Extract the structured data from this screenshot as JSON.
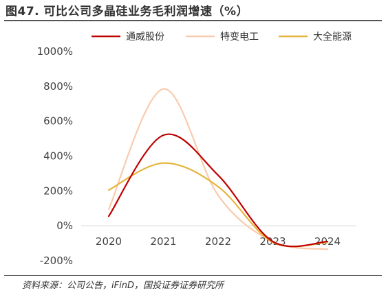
{
  "figure": {
    "title": "图47. 可比公司多晶硅业务毛利润增速（%）",
    "source": "资料来源：公司公告，iFinD，国投证券证券研究所"
  },
  "chart_data": {
    "type": "line",
    "title": "",
    "xlabel": "",
    "ylabel": "",
    "categories": [
      "2020",
      "2021",
      "2022",
      "2023",
      "2024"
    ],
    "y_ticks": [
      "-200%",
      "0%",
      "200%",
      "400%",
      "600%",
      "800%",
      "1000%"
    ],
    "y_tick_values": [
      -200,
      0,
      200,
      400,
      600,
      800,
      1000
    ],
    "ylim": [
      -200,
      1000
    ],
    "grid": false,
    "legend_position": "top",
    "smooth": true,
    "series": [
      {
        "name": "通威股份",
        "color": "#c00000",
        "values": [
          55,
          520,
          290,
          -90,
          -90
        ]
      },
      {
        "name": "特变电工",
        "color": "#f8cbad",
        "values": [
          95,
          785,
          175,
          -90,
          -135
        ]
      },
      {
        "name": "大全能源",
        "color": "#e5b53a",
        "values": [
          205,
          360,
          225,
          -95,
          -95
        ]
      }
    ]
  }
}
